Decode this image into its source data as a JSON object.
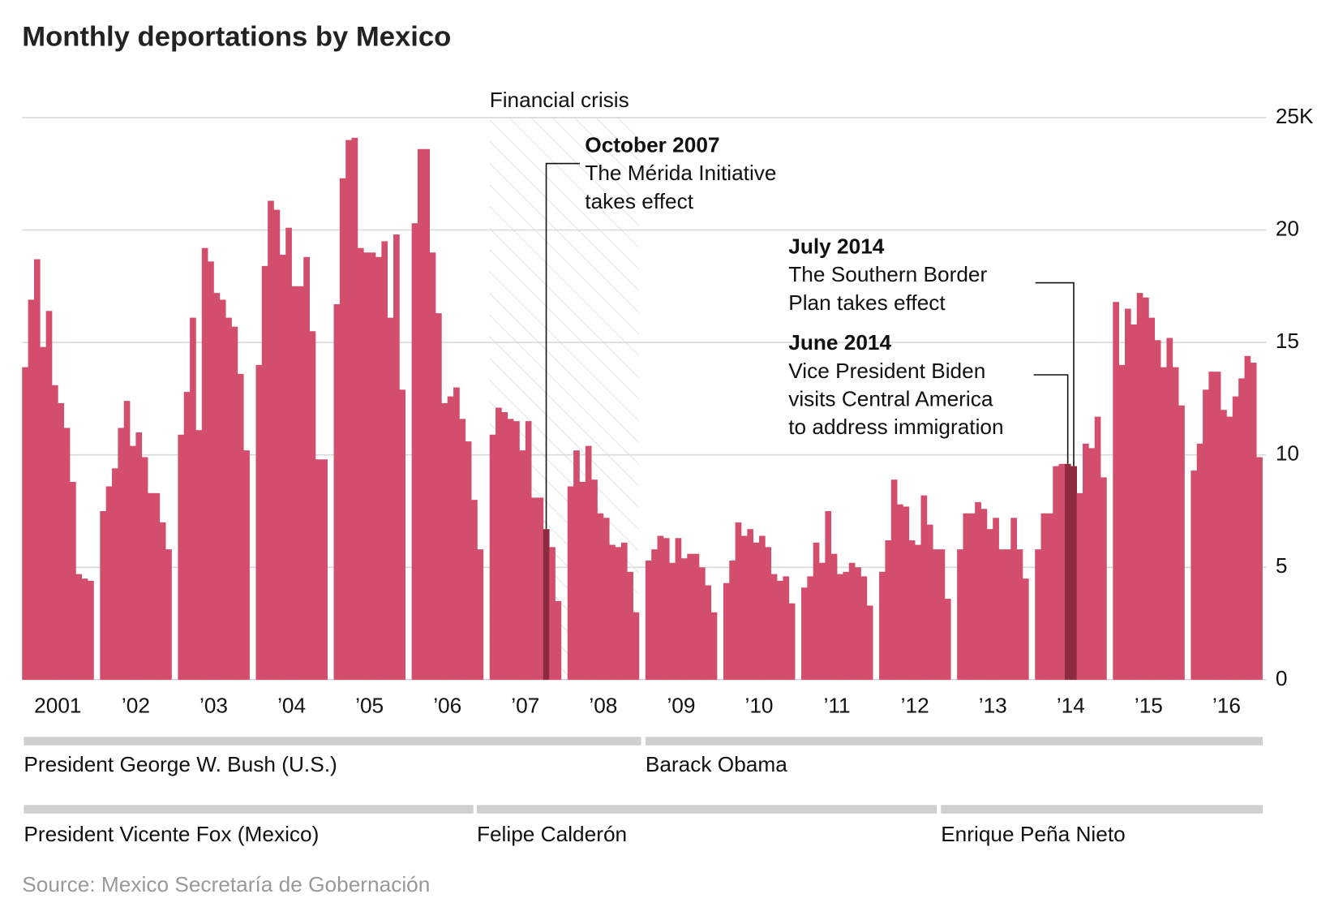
{
  "chart_data": {
    "type": "bar",
    "title": "Monthly deportations by Mexico",
    "categories": [
      "2001",
      "’02",
      "’03",
      "’04",
      "’05",
      "’06",
      "’07",
      "’08",
      "’09",
      "’10",
      "’11",
      "’12",
      "’13",
      "’14",
      "’15",
      "’16"
    ],
    "values": [
      [
        13.9,
        16.9,
        18.7,
        14.8,
        16.4,
        13.1,
        12.3,
        11.2,
        8.8,
        4.7,
        4.5,
        4.4
      ],
      [
        7.5,
        8.6,
        9.4,
        11.2,
        12.4,
        10.4,
        11.0,
        9.9,
        8.3,
        8.3,
        7.0,
        5.8
      ],
      [
        10.9,
        12.8,
        16.1,
        11.1,
        19.2,
        18.6,
        17.2,
        16.9,
        16.1,
        15.7,
        13.6,
        10.2
      ],
      [
        14.0,
        18.4,
        21.3,
        20.9,
        18.9,
        20.1,
        17.5,
        17.5,
        18.8,
        15.5,
        9.8,
        9.8
      ],
      [
        16.7,
        22.3,
        24.0,
        24.1,
        19.2,
        19.0,
        19.0,
        18.8,
        19.5,
        16.1,
        19.8,
        12.9
      ],
      [
        20.3,
        23.6,
        23.6,
        19.0,
        16.3,
        12.3,
        12.6,
        13.0,
        11.6,
        10.6,
        8.0,
        5.8
      ],
      [
        10.9,
        12.1,
        11.9,
        11.6,
        11.5,
        10.2,
        11.5,
        8.1,
        8.1,
        6.7,
        5.9,
        3.5
      ],
      [
        8.6,
        10.2,
        8.8,
        10.4,
        8.9,
        7.4,
        7.2,
        6.0,
        5.9,
        6.1,
        4.8,
        3.0
      ],
      [
        5.3,
        5.8,
        6.4,
        6.3,
        5.2,
        6.3,
        5.4,
        5.6,
        5.6,
        5.0,
        4.2,
        3.0
      ],
      [
        4.3,
        5.3,
        7.0,
        6.4,
        6.7,
        6.1,
        6.4,
        5.9,
        4.7,
        4.4,
        4.6,
        3.4
      ],
      [
        4.1,
        4.6,
        6.1,
        5.2,
        7.5,
        5.6,
        4.7,
        4.8,
        5.2,
        5.0,
        4.6,
        3.3
      ],
      [
        4.8,
        6.2,
        8.9,
        7.8,
        7.7,
        6.2,
        6.0,
        8.2,
        6.9,
        5.8,
        5.8,
        3.6
      ],
      [
        5.8,
        7.4,
        7.4,
        7.9,
        7.6,
        6.7,
        7.2,
        5.8,
        5.8,
        7.2,
        5.8,
        4.5
      ],
      [
        5.8,
        7.4,
        7.4,
        9.5,
        9.6,
        9.6,
        9.5,
        8.3,
        10.5,
        10.3,
        11.7,
        9.0
      ],
      [
        16.8,
        14.0,
        16.5,
        15.8,
        17.2,
        17.0,
        16.1,
        15.1,
        13.9,
        15.2,
        13.9,
        12.2
      ],
      [
        9.3,
        10.5,
        12.9,
        13.7,
        13.7,
        12.0,
        11.7,
        12.6,
        13.4,
        14.4,
        14.1,
        9.9
      ]
    ],
    "color": "#d24e6c",
    "highlight_color": "#8e2a40",
    "ylim": [
      0,
      25
    ],
    "yticks": [
      0,
      5,
      10,
      15,
      20,
      {
        "value": 25,
        "label": "25K"
      }
    ],
    "grid": true,
    "shaded_region": {
      "label": "Financial crisis"
    },
    "annotations": [
      {
        "title": "October 2007",
        "lines": [
          "The Mérida Initiative",
          "takes effect"
        ]
      },
      {
        "title": "July 2014",
        "lines": [
          "The Southern Border",
          "Plan takes effect"
        ]
      },
      {
        "title": "June 2014",
        "lines": [
          "Vice President Biden",
          "visits Central America",
          "to address immigration"
        ]
      }
    ],
    "us_presidents": [
      "President George W. Bush (U.S.)",
      "Barack Obama"
    ],
    "mexico_presidents": [
      "President Vicente Fox (Mexico)",
      "Felipe Calderón",
      "Enrique Peña Nieto"
    ],
    "source": "Source: Mexico Secretaría de Gobernación"
  }
}
